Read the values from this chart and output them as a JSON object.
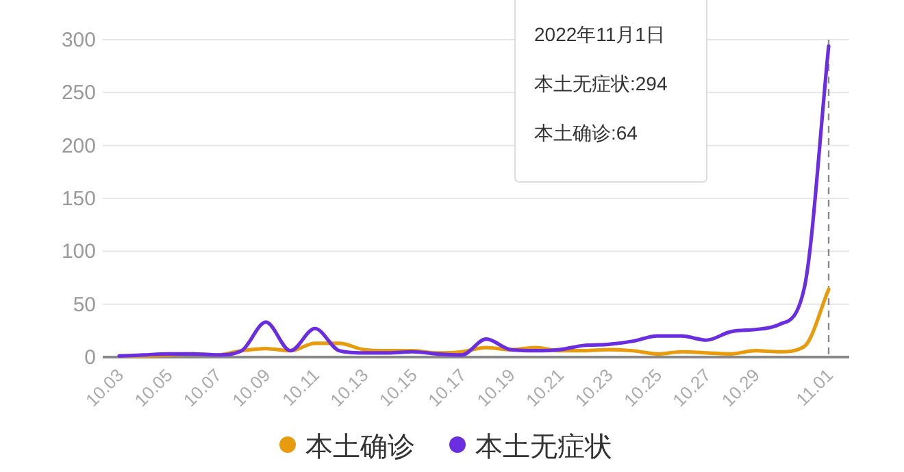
{
  "chart_data": {
    "type": "line",
    "categories": [
      "10.03",
      null,
      "10.05",
      null,
      "10.07",
      null,
      "10.09",
      null,
      "10.11",
      null,
      "10.13",
      null,
      "10.15",
      null,
      "10.17",
      null,
      "10.19",
      null,
      "10.21",
      null,
      "10.23",
      null,
      "10.25",
      null,
      "10.27",
      null,
      "10.29",
      null,
      null,
      "11.01"
    ],
    "series": [
      {
        "name": "本土确诊",
        "color": "#e89b0c",
        "values": [
          1,
          1,
          2,
          3,
          2,
          6,
          8,
          6,
          13,
          13,
          7,
          6,
          6,
          4,
          5,
          9,
          7,
          9,
          6,
          6,
          7,
          6,
          3,
          5,
          4,
          3,
          6,
          5,
          10,
          64
        ]
      },
      {
        "name": "本土无症状",
        "color": "#6a2ee0",
        "values": [
          1,
          2,
          3,
          3,
          2,
          6,
          33,
          6,
          27,
          6,
          4,
          4,
          5,
          3,
          2,
          17,
          7,
          6,
          7,
          11,
          12,
          15,
          20,
          20,
          16,
          24,
          26,
          31,
          65,
          294
        ]
      }
    ],
    "ylim": [
      0,
      300
    ],
    "yticks": [
      0,
      50,
      100,
      150,
      200,
      250,
      300
    ],
    "grid": "y",
    "legend": "bottom",
    "marker": "none",
    "ref_lines": [
      {
        "axis": "x",
        "value": "11.01",
        "line_style": "dashed",
        "color": "#888888"
      }
    ],
    "annotations": [
      "2022年11月1日",
      "本土无症状:294",
      "本土确诊:64"
    ]
  }
}
